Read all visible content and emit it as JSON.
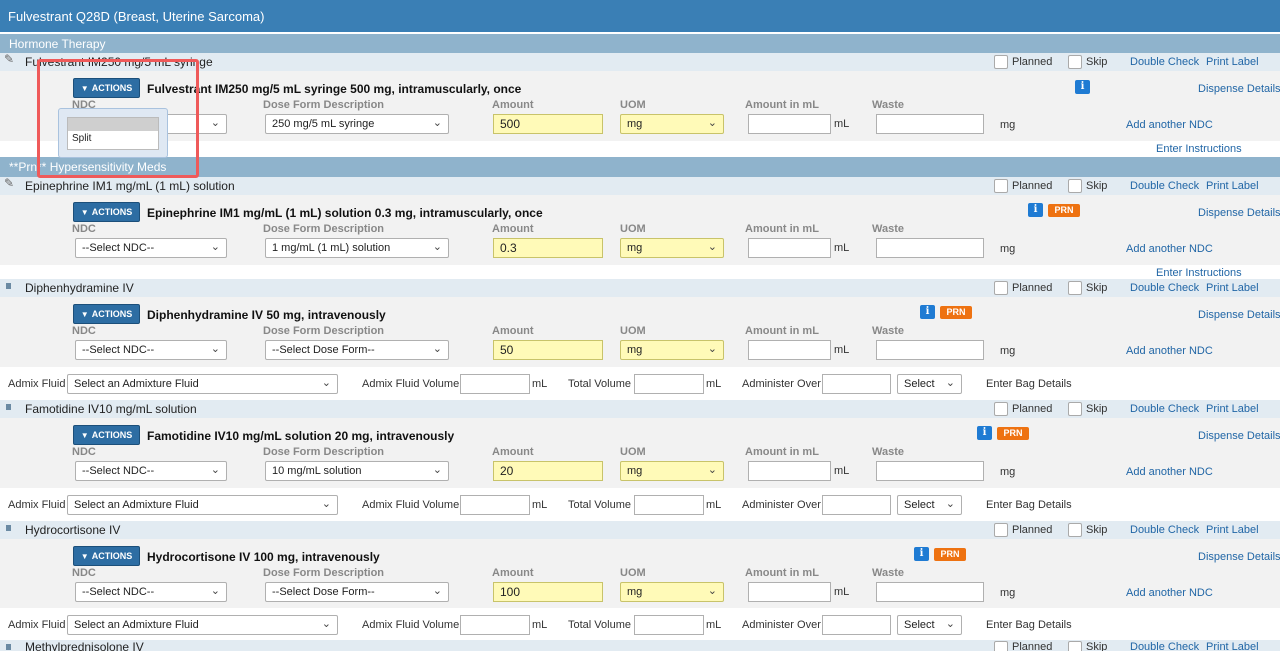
{
  "window_title": "Fulvestrant Q28D (Breast, Uterine Sarcoma)",
  "sections": {
    "hormone": "Hormone Therapy",
    "hypersensitivity": "**Prn** Hypersensitivity Meds"
  },
  "labels": {
    "planned": "Planned",
    "skip": "Skip",
    "double_check": "Double Check",
    "print_label": "Print Label",
    "actions": "ACTIONS",
    "dispense_details": "Dispense Details",
    "add_ndc": "Add another NDC",
    "enter_instructions": "Enter Instructions",
    "ndc": "NDC",
    "dose_form_desc": "Dose Form Description",
    "amount": "Amount",
    "uom": "UOM",
    "amount_ml": "Amount in mL",
    "waste": "Waste",
    "ml": "mL",
    "mg": "mg",
    "admix_fluid": "Admix Fluid",
    "admix_fluid_volume": "Admix Fluid Volume",
    "total_volume": "Total Volume",
    "administer_over": "Administer Over",
    "enter_bag_details": "Enter Bag Details",
    "select_admix": "Select an Admixture Fluid",
    "select": "Select",
    "prn": "PRN",
    "info": "i"
  },
  "dropdown": {
    "option": "Split"
  },
  "meds": [
    {
      "header": "Fulvestrant IM250 mg/5 mL syringe",
      "order": "Fulvestrant IM250 mg/5 mL syringe 500 mg, intramuscularly, once",
      "ndc": "",
      "dose_form": "250 mg/5 mL syringe",
      "amount": "500",
      "uom": "mg"
    },
    {
      "header": "Epinephrine IM1 mg/mL (1 mL) solution",
      "order": "Epinephrine IM1 mg/mL (1 mL) solution 0.3 mg, intramuscularly, once",
      "ndc": "--Select NDC--",
      "dose_form": "1 mg/mL (1 mL) solution",
      "amount": "0.3",
      "uom": "mg"
    },
    {
      "header": "Diphenhydramine IV",
      "order": "Diphenhydramine IV 50 mg, intravenously",
      "ndc": "--Select NDC--",
      "dose_form": "--Select Dose Form--",
      "amount": "50",
      "uom": "mg"
    },
    {
      "header": "Famotidine IV10 mg/mL solution",
      "order": "Famotidine IV10 mg/mL solution 20 mg, intravenously",
      "ndc": "--Select NDC--",
      "dose_form": "10 mg/mL solution",
      "amount": "20",
      "uom": "mg"
    },
    {
      "header": "Hydrocortisone IV",
      "order": "Hydrocortisone IV 100 mg, intravenously",
      "ndc": "--Select NDC--",
      "dose_form": "--Select Dose Form--",
      "amount": "100",
      "uom": "mg"
    },
    {
      "header": "Methylprednisolone IV"
    }
  ]
}
